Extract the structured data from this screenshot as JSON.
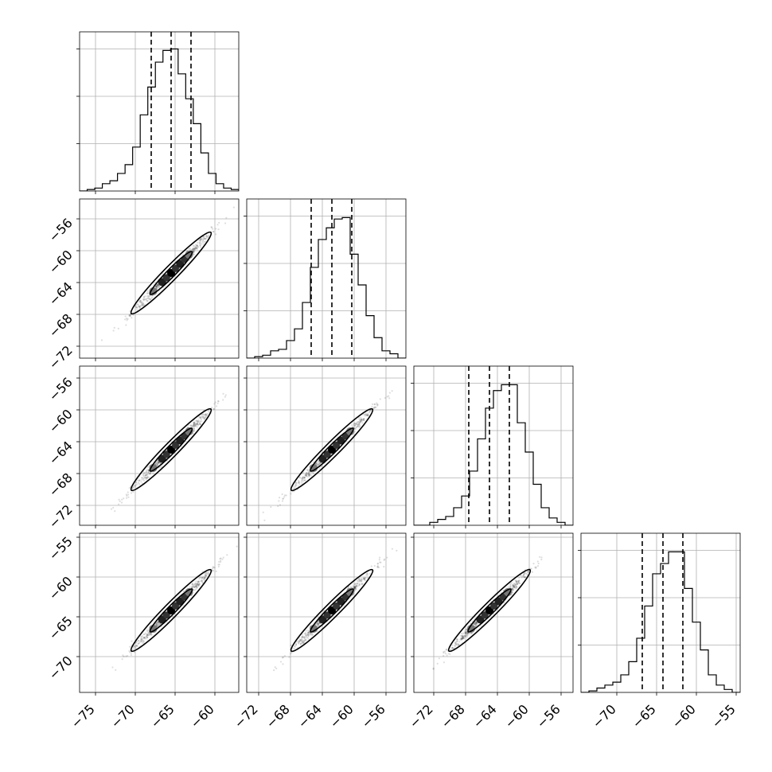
{
  "chart_data": {
    "type": "corner",
    "grid": true,
    "params": [
      {
        "range": [
          -77,
          -57
        ],
        "ticks": [
          -75,
          -70,
          -65,
          -60
        ],
        "quantiles": [
          -68.0,
          -65.5,
          -63.0
        ]
      },
      {
        "range": [
          -73.5,
          -53.5
        ],
        "ticks": [
          -72,
          -68,
          -64,
          -60,
          -56
        ],
        "quantiles": [
          -65.4,
          -62.8,
          -60.3
        ]
      },
      {
        "range": [
          -74.5,
          -54.5
        ],
        "ticks": [
          -72,
          -68,
          -64,
          -60,
          -56
        ],
        "quantiles": [
          -67.6,
          -65.0,
          -62.5
        ]
      },
      {
        "range": [
          -74.5,
          -54.5
        ],
        "ticks": [
          -70,
          -65,
          -60,
          -55
        ],
        "quantiles": [
          -66.8,
          -64.2,
          -61.7
        ]
      }
    ],
    "histograms": [
      [
        0.0,
        0.01,
        0.02,
        0.05,
        0.07,
        0.12,
        0.18,
        0.3,
        0.52,
        0.71,
        0.88,
        0.96,
        0.97,
        0.8,
        0.63,
        0.46,
        0.26,
        0.12,
        0.05,
        0.02,
        0.01
      ],
      [
        0.0,
        0.01,
        0.02,
        0.05,
        0.06,
        0.12,
        0.2,
        0.38,
        0.62,
        0.81,
        0.89,
        0.95,
        0.96,
        0.71,
        0.5,
        0.29,
        0.14,
        0.05,
        0.03,
        0.0
      ],
      [
        0.0,
        0.0,
        0.02,
        0.04,
        0.06,
        0.12,
        0.2,
        0.37,
        0.59,
        0.8,
        0.92,
        0.96,
        0.96,
        0.7,
        0.5,
        0.28,
        0.12,
        0.05,
        0.02,
        0.0
      ],
      [
        0.0,
        0.01,
        0.03,
        0.05,
        0.07,
        0.12,
        0.21,
        0.37,
        0.59,
        0.81,
        0.88,
        0.96,
        0.96,
        0.71,
        0.48,
        0.29,
        0.12,
        0.05,
        0.02,
        0.0
      ]
    ]
  }
}
